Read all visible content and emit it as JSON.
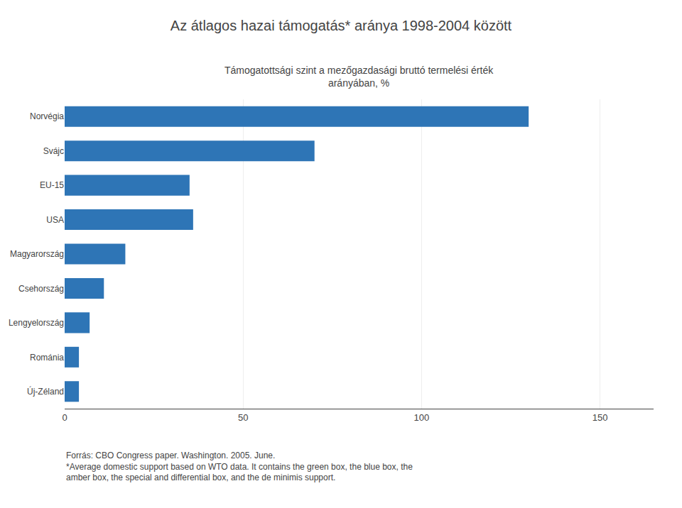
{
  "chart_data": {
    "type": "bar",
    "orientation": "horizontal",
    "title": "Az átlagos hazai támogatás* aránya 1998-2004 között",
    "subtitle": [
      "Támogatottsági szint a mezőgazdasági bruttó termelési érték",
      "arányában, %"
    ],
    "categories": [
      "Új-Zéland",
      "Románia",
      "Lengyelország",
      "Csehország",
      "Magyarország",
      "USA",
      "EU-15",
      "Svájc",
      "Norvégia"
    ],
    "values": [
      4,
      4,
      7,
      11,
      17,
      36,
      35,
      70,
      130
    ],
    "color": "#2E75B6",
    "xlim": [
      0,
      165
    ],
    "xticks": [
      0,
      50,
      100,
      150
    ],
    "grid": true,
    "annotations": [
      "Forrás: CBO Congress paper. Washington. 2005. June.",
      "*Average domestic support based on WTO data. It contains the green box, the blue box, the",
      "amber box, the special and differential box, and the de minimis support."
    ]
  }
}
